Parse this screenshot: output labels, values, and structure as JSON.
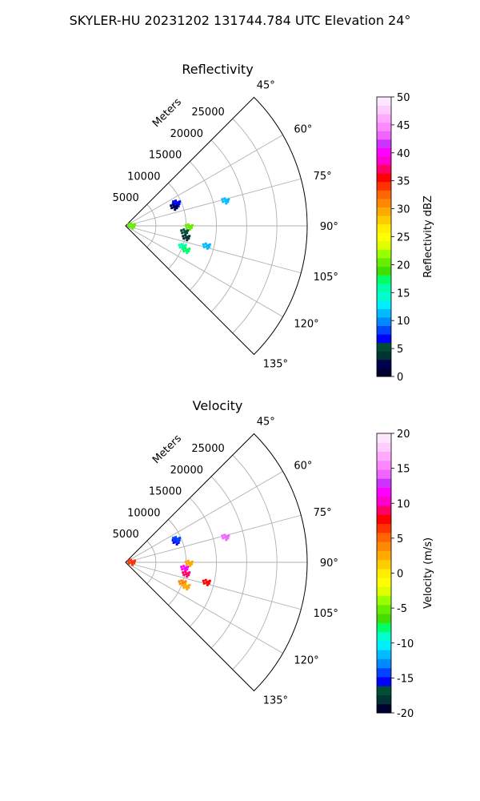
{
  "figure": {
    "suptitle": "SKYLER-HU  20231202  131744.784 UTC Elevation 24°"
  },
  "chart_data": [
    {
      "type": "polar-sector",
      "title": "Reflectivity",
      "r_label": "Meters",
      "r_ticks": [
        5000,
        10000,
        15000,
        20000,
        25000
      ],
      "rlim": [
        0,
        30000
      ],
      "theta_ticks": [
        "45°",
        "60°",
        "75°",
        "90°",
        "105°",
        "120°",
        "135°"
      ],
      "theta_range_deg": [
        45,
        135
      ],
      "grid": true,
      "colorbar": {
        "label": "Reflectivity dBZ",
        "ticks": [
          0,
          5,
          10,
          15,
          20,
          25,
          30,
          35,
          40,
          45,
          50
        ],
        "range": [
          0,
          50
        ],
        "colors": [
          "#000033",
          "#00004d",
          "#003333",
          "#004d33",
          "#0000ff",
          "#0044ff",
          "#0088ff",
          "#00bbff",
          "#00eeff",
          "#00ffcc",
          "#00ffaa",
          "#00ff66",
          "#44dd00",
          "#66ee00",
          "#99ff00",
          "#ddff00",
          "#ffff00",
          "#ffee00",
          "#ffcc00",
          "#ffaa00",
          "#ff8800",
          "#ff6600",
          "#ff3300",
          "#ff0000",
          "#ff0066",
          "#ff00cc",
          "#ff00ff",
          "#cc33ff",
          "#ee66ff",
          "#ff88ff",
          "#ffaaff",
          "#ffccff",
          "#ffe6ff"
        ]
      },
      "echoes": [
        {
          "r": 9000,
          "theta": 68,
          "value": 9
        },
        {
          "r": 9200,
          "theta": 66,
          "value": 7
        },
        {
          "r": 8600,
          "theta": 69,
          "value": 3
        },
        {
          "r": 17000,
          "theta": 76,
          "value": 12
        },
        {
          "r": 10500,
          "theta": 91,
          "value": 20
        },
        {
          "r": 9800,
          "theta": 96,
          "value": 5
        },
        {
          "r": 10200,
          "theta": 101,
          "value": 4
        },
        {
          "r": 10000,
          "theta": 110,
          "value": 16
        },
        {
          "r": 10800,
          "theta": 112,
          "value": 17
        },
        {
          "r": 13800,
          "theta": 104,
          "value": 11
        },
        {
          "r": 1000,
          "theta": 90,
          "value": 21
        }
      ]
    },
    {
      "type": "polar-sector",
      "title": "Velocity",
      "r_label": "Meters",
      "r_ticks": [
        5000,
        10000,
        15000,
        20000,
        25000
      ],
      "rlim": [
        0,
        30000
      ],
      "theta_ticks": [
        "45°",
        "60°",
        "75°",
        "90°",
        "105°",
        "120°",
        "135°"
      ],
      "theta_range_deg": [
        45,
        135
      ],
      "grid": true,
      "colorbar": {
        "label": "Velocity (m/s)",
        "ticks": [
          -20,
          -15,
          -10,
          -5,
          0,
          5,
          10,
          15,
          20
        ],
        "range": [
          -20,
          20
        ],
        "colors": [
          "#000033",
          "#003333",
          "#004d33",
          "#0000ff",
          "#0044ff",
          "#0088ff",
          "#00bbff",
          "#00eeff",
          "#00ffcc",
          "#00ff66",
          "#44dd00",
          "#66ee00",
          "#99ff00",
          "#ddff00",
          "#ffff00",
          "#ffee00",
          "#ffcc00",
          "#ffaa00",
          "#ff8800",
          "#ff6600",
          "#ff3300",
          "#ff0000",
          "#ff0066",
          "#ff00cc",
          "#ff00ff",
          "#cc33ff",
          "#ee66ff",
          "#ff88ff",
          "#ffaaff",
          "#ffccff",
          "#ffe6ff"
        ]
      },
      "echoes": [
        {
          "r": 9000,
          "theta": 68,
          "value": -15
        },
        {
          "r": 9200,
          "theta": 66,
          "value": -14
        },
        {
          "r": 17000,
          "theta": 76,
          "value": 14
        },
        {
          "r": 10500,
          "theta": 91,
          "value": 2
        },
        {
          "r": 9800,
          "theta": 96,
          "value": 12
        },
        {
          "r": 10200,
          "theta": 101,
          "value": 9
        },
        {
          "r": 10000,
          "theta": 110,
          "value": 4
        },
        {
          "r": 10800,
          "theta": 112,
          "value": 3
        },
        {
          "r": 13800,
          "theta": 104,
          "value": 8
        },
        {
          "r": 1000,
          "theta": 90,
          "value": 6
        }
      ]
    }
  ]
}
